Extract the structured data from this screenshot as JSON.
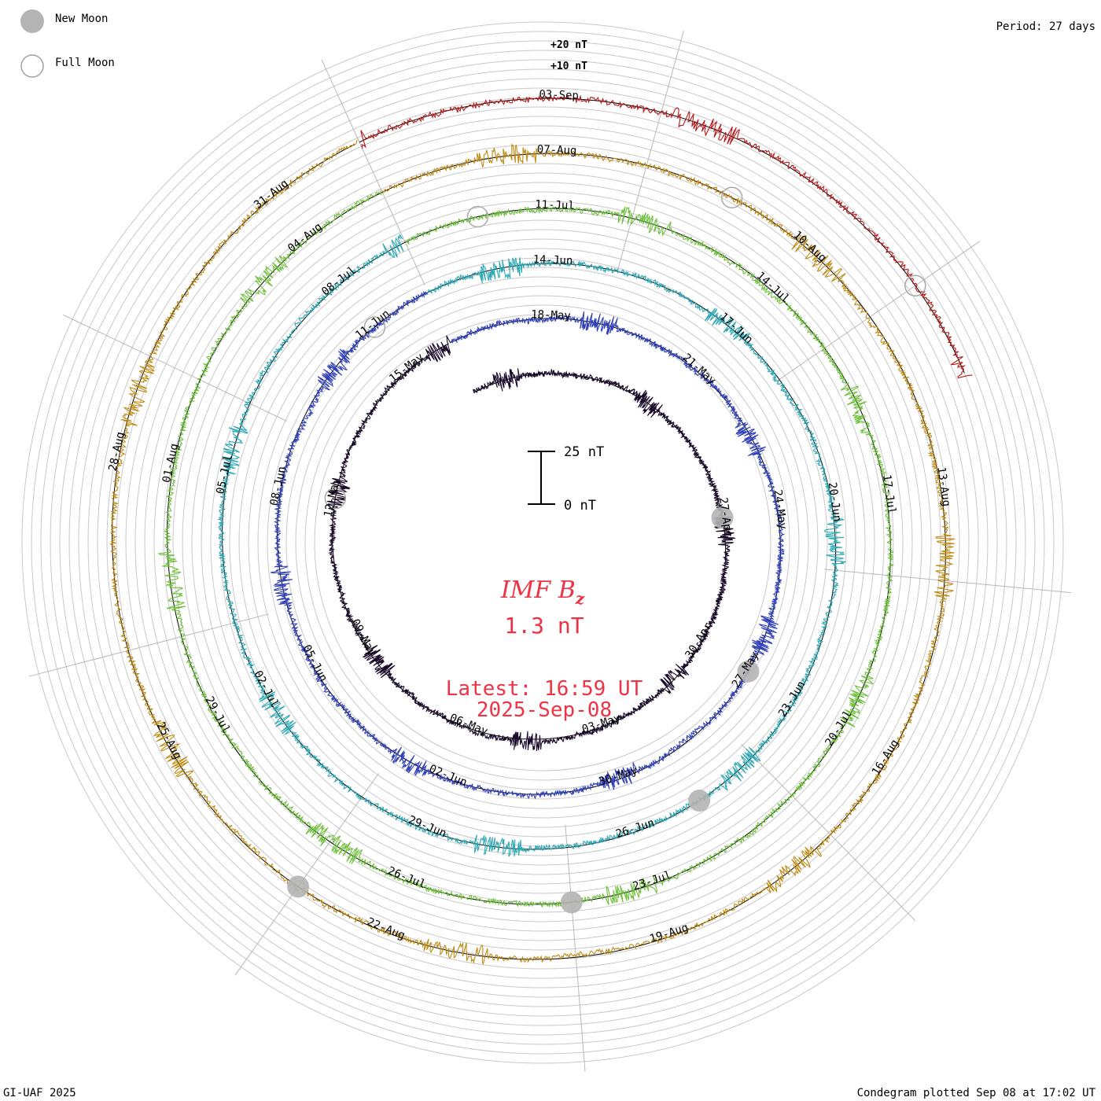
{
  "legend": {
    "new_moon_label": "New Moon",
    "full_moon_label": "Full Moon",
    "new_moon_color": "#b4b4b4"
  },
  "period_label": "Period: 27 days",
  "footer": {
    "credit": "GI-UAF 2025",
    "plotted": "Condegram plotted Sep 08 at 17:02 UT"
  },
  "scale_bar": {
    "top_label": "25 nT",
    "bottom_label": "0 nT"
  },
  "center": {
    "title": "IMF B",
    "title_sub": "z",
    "value": "1.3 nT",
    "latest": "Latest: 16:59 UT",
    "date": "2025-Sep-08",
    "color": "#ee3344"
  },
  "chart_data": {
    "type": "line",
    "title": "IMF Bz",
    "ring_period_days": 27,
    "ring_offset_labels": [
      "+20 nT",
      "+10 nT"
    ],
    "series": [
      {
        "start": "2025-04-19",
        "end": "2025-05-16",
        "color": "#1a0a2a",
        "date_labels": [
          "27-Apr",
          "30-Apr",
          "03-May",
          "06-May",
          "09-May",
          "12-May",
          "15-May",
          "18-May",
          "21-May"
        ]
      },
      {
        "start": "2025-05-16",
        "end": "2025-06-12",
        "color": "#3040b8",
        "date_labels": [
          "24-May",
          "27-May",
          "30-May",
          "02-Jun",
          "05-Jun",
          "08-Jun",
          "11-Jun",
          "14-Jun",
          "17-Jun"
        ]
      },
      {
        "start": "2025-06-12",
        "end": "2025-07-09",
        "color": "#2aa8b4",
        "date_labels": [
          "20-Jun",
          "23-Jun",
          "26-Jun",
          "29-Jun",
          "02-Jul",
          "05-Jul",
          "08-Jul",
          "11-Jul",
          "14-Jul"
        ]
      },
      {
        "start": "2025-07-09",
        "end": "2025-08-05",
        "color": "#6cc038",
        "date_labels": [
          "17-Jul",
          "20-Jul",
          "23-Jul",
          "26-Jul",
          "29-Jul",
          "01-Aug",
          "04-Aug",
          "07-Aug",
          "10-Aug"
        ]
      },
      {
        "start": "2025-08-05",
        "end": "2025-09-01",
        "color": "#c08a10",
        "date_labels": [
          "13-Aug",
          "16-Aug",
          "19-Aug",
          "22-Aug",
          "25-Aug",
          "28-Aug",
          "31-Aug",
          "03-Sep"
        ]
      },
      {
        "start": "2025-09-01",
        "end": "2025-09-08",
        "color": "#b81818",
        "date_labels": []
      }
    ],
    "new_moons": [
      "2025-04-27",
      "2025-05-27",
      "2025-06-25",
      "2025-07-24",
      "2025-08-23"
    ],
    "full_moons": [
      "2025-05-12",
      "2025-06-11",
      "2025-07-10",
      "2025-08-09",
      "2025-09-07"
    ]
  }
}
